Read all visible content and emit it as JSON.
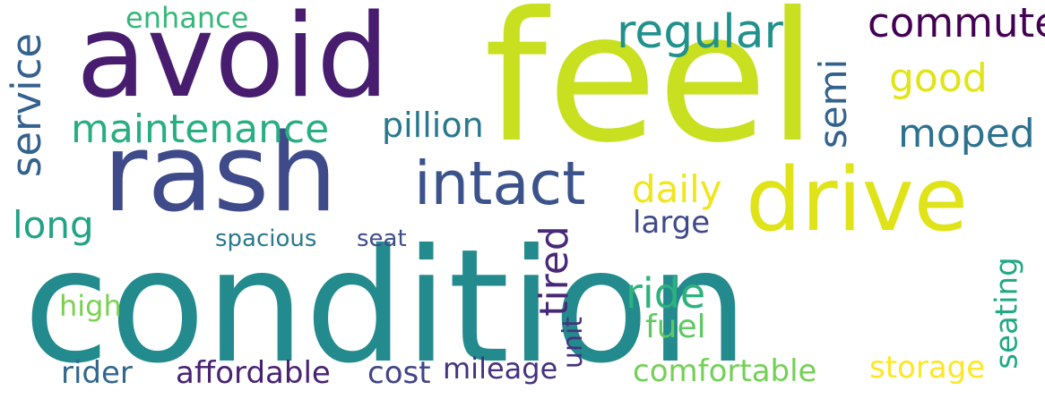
{
  "words": [
    {
      "text": "condition",
      "color": "#238a8d"
    },
    {
      "text": "feel",
      "color": "#c8e020"
    },
    {
      "text": "avoid",
      "color": "#481d6f"
    },
    {
      "text": "rash",
      "color": "#3e4a89"
    },
    {
      "text": "drive",
      "color": "#dfe318"
    },
    {
      "text": "intact",
      "color": "#3b528b"
    },
    {
      "text": "regular",
      "color": "#21918c"
    },
    {
      "text": "commute",
      "color": "#440154"
    },
    {
      "text": "maintenance",
      "color": "#28ae80"
    },
    {
      "text": "service",
      "color": "#34618d"
    },
    {
      "text": "enhance",
      "color": "#35b779"
    },
    {
      "text": "good",
      "color": "#e2e418"
    },
    {
      "text": "semi",
      "color": "#33638d"
    },
    {
      "text": "moped",
      "color": "#2c728e"
    },
    {
      "text": "pillion",
      "color": "#2a788e"
    },
    {
      "text": "daily",
      "color": "#f1e51d"
    },
    {
      "text": "long",
      "color": "#20a386"
    },
    {
      "text": "tired",
      "color": "#482878"
    },
    {
      "text": "large",
      "color": "#3e4989"
    },
    {
      "text": "spacious",
      "color": "#2a788e"
    },
    {
      "text": "seat",
      "color": "#3e4c8a"
    },
    {
      "text": "high",
      "color": "#7ad151"
    },
    {
      "text": "ride",
      "color": "#2db27d"
    },
    {
      "text": "fuel",
      "color": "#5ec962"
    },
    {
      "text": "unit",
      "color": "#46337e"
    },
    {
      "text": "seating",
      "color": "#22a884"
    },
    {
      "text": "rider",
      "color": "#31668e"
    },
    {
      "text": "affordable",
      "color": "#482173"
    },
    {
      "text": "cost",
      "color": "#414487"
    },
    {
      "text": "mileage",
      "color": "#46327e"
    },
    {
      "text": "comfortable",
      "color": "#73d056"
    },
    {
      "text": "storage",
      "color": "#fde725"
    }
  ]
}
